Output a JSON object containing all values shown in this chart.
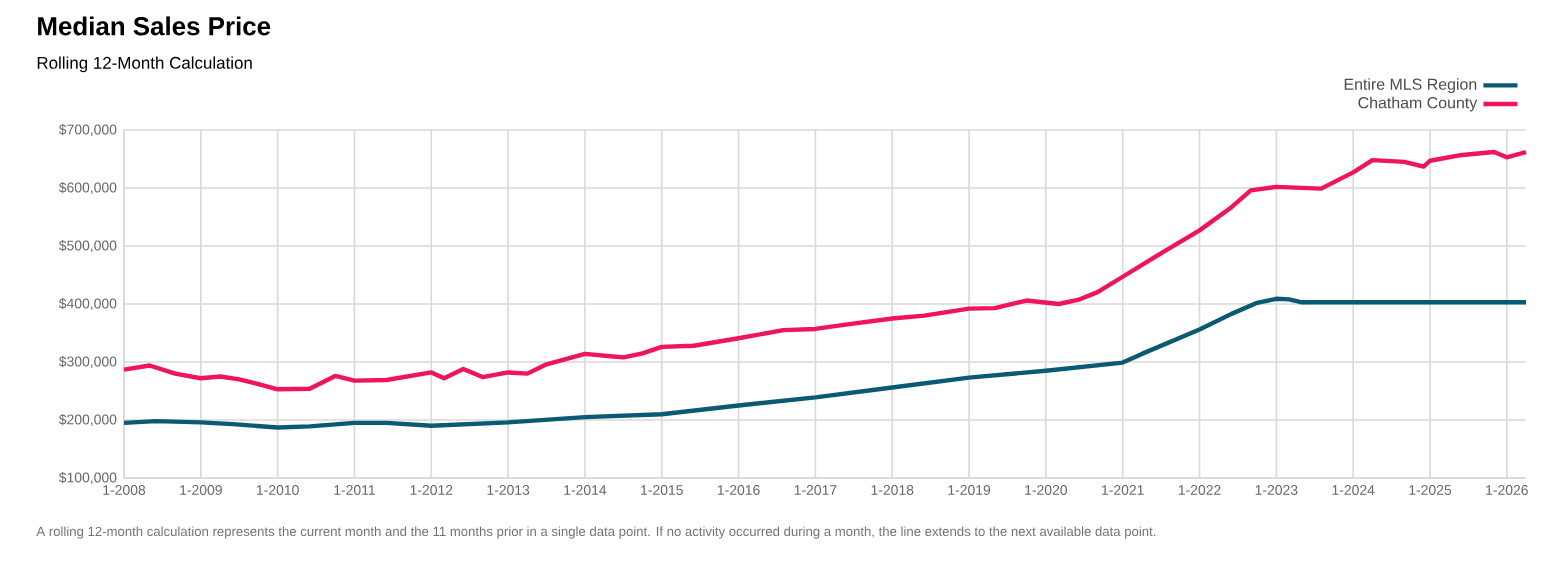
{
  "chart_data": {
    "type": "line",
    "title": "Median Sales Price",
    "subtitle": "Rolling 12-Month Calculation",
    "annotations": [
      "A rolling 12-month calculation represents the current month and the 11 months prior in a single data point. If no activity occurred during a month, the line extends to the next available data point."
    ],
    "series": [
      {
        "name": "Entire MLS Region",
        "color": "#0b5a73",
        "x": [
          "2008-01",
          "2008-06",
          "2009-01",
          "2009-06",
          "2010-01",
          "2010-06",
          "2011-01",
          "2011-06",
          "2012-01",
          "2013-01",
          "2014-01",
          "2015-01",
          "2016-01",
          "2017-01",
          "2018-01",
          "2019-01",
          "2020-01",
          "2021-01",
          "2021-04",
          "2022-01",
          "2022-06",
          "2022-10",
          "2023-01",
          "2023-03",
          "2023-05",
          "2026-04"
        ],
        "values": [
          195000,
          198000,
          196000,
          193000,
          187000,
          189000,
          195000,
          195000,
          190000,
          196000,
          205000,
          210000,
          225000,
          239000,
          256000,
          273000,
          285000,
          299000,
          314000,
          356000,
          383000,
          402000,
          409000,
          408000,
          403000,
          403000
        ]
      },
      {
        "name": "Chatham County",
        "color": "#f0145a",
        "x": [
          "2008-01",
          "2008-05",
          "2008-09",
          "2009-01",
          "2009-04",
          "2009-07",
          "2009-10",
          "2010-01",
          "2010-06",
          "2010-10",
          "2011-01",
          "2011-06",
          "2012-01",
          "2012-03",
          "2012-06",
          "2012-09",
          "2013-01",
          "2013-04",
          "2013-07",
          "2014-01",
          "2014-05",
          "2014-07",
          "2014-10",
          "2015-01",
          "2015-06",
          "2016-01",
          "2016-08",
          "2017-01",
          "2017-06",
          "2018-01",
          "2018-06",
          "2019-01",
          "2019-05",
          "2019-10",
          "2020-03",
          "2020-06",
          "2020-09",
          "2021-01",
          "2021-06",
          "2022-01",
          "2022-06",
          "2022-09",
          "2023-01",
          "2023-08",
          "2024-01",
          "2024-04",
          "2024-09",
          "2024-12",
          "2025-01",
          "2025-06",
          "2025-11",
          "2026-01",
          "2026-04"
        ],
        "values": [
          287000,
          294000,
          280000,
          272000,
          275000,
          270000,
          262000,
          253000,
          254000,
          276000,
          268000,
          269000,
          282000,
          272000,
          288000,
          274000,
          282000,
          280000,
          296000,
          314000,
          310000,
          308000,
          315000,
          326000,
          328000,
          341000,
          355000,
          357000,
          365000,
          375000,
          380000,
          392000,
          393000,
          406000,
          400000,
          407000,
          420000,
          447000,
          481000,
          527000,
          567000,
          596000,
          602000,
          599000,
          627000,
          648000,
          645000,
          637000,
          647000,
          657000,
          662000,
          653000,
          662000
        ]
      }
    ],
    "xlim": [
      "2008-01",
      "2026-04"
    ],
    "xticks": [
      {
        "value": "2008-01",
        "label": "1-2008"
      },
      {
        "value": "2009-01",
        "label": "1-2009"
      },
      {
        "value": "2010-01",
        "label": "1-2010"
      },
      {
        "value": "2011-01",
        "label": "1-2011"
      },
      {
        "value": "2012-01",
        "label": "1-2012"
      },
      {
        "value": "2013-01",
        "label": "1-2013"
      },
      {
        "value": "2014-01",
        "label": "1-2014"
      },
      {
        "value": "2015-01",
        "label": "1-2015"
      },
      {
        "value": "2016-01",
        "label": "1-2016"
      },
      {
        "value": "2017-01",
        "label": "1-2017"
      },
      {
        "value": "2018-01",
        "label": "1-2018"
      },
      {
        "value": "2019-01",
        "label": "1-2019"
      },
      {
        "value": "2020-01",
        "label": "1-2020"
      },
      {
        "value": "2021-01",
        "label": "1-2021"
      },
      {
        "value": "2022-01",
        "label": "1-2022"
      },
      {
        "value": "2023-01",
        "label": "1-2023"
      },
      {
        "value": "2024-01",
        "label": "1-2024"
      },
      {
        "value": "2025-01",
        "label": "1-2025"
      },
      {
        "value": "2026-01",
        "label": "1-2026"
      }
    ],
    "ylim": [
      100000,
      700000
    ],
    "yticks": [
      {
        "value": 100000,
        "label": "$100,000"
      },
      {
        "value": 200000,
        "label": "$200,000"
      },
      {
        "value": 300000,
        "label": "$300,000"
      },
      {
        "value": 400000,
        "label": "$400,000"
      },
      {
        "value": 500000,
        "label": "$500,000"
      },
      {
        "value": 600000,
        "label": "$600,000"
      },
      {
        "value": 700000,
        "label": "$700,000"
      }
    ],
    "grid": true,
    "legend": "top right",
    "marker": "none",
    "line_style": "solid"
  }
}
